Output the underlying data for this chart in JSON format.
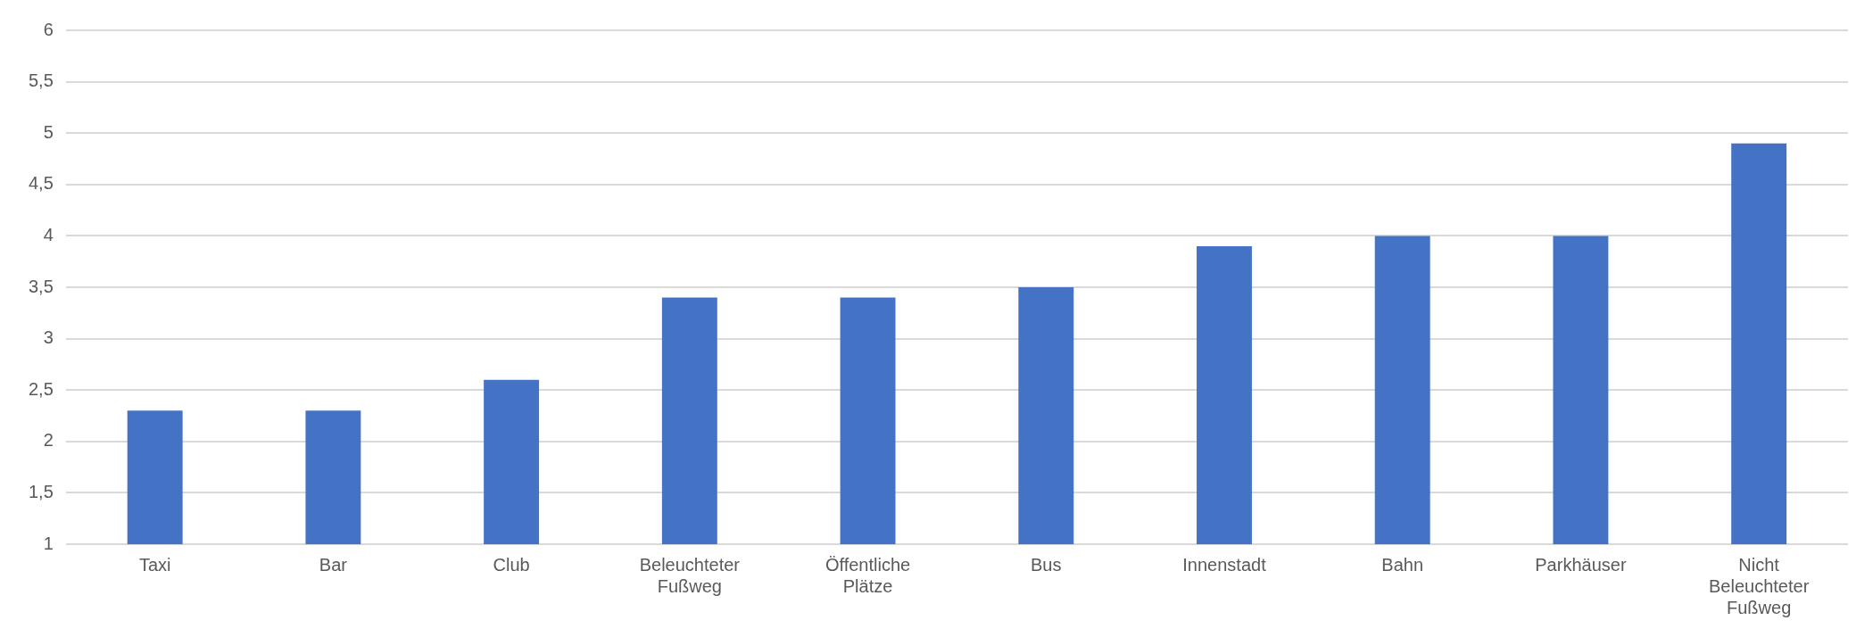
{
  "chart_data": {
    "type": "bar",
    "categories": [
      "Taxi",
      "Bar",
      "Club",
      "Beleuchteter Fußweg",
      "Öffentliche Plätze",
      "Bus",
      "Innenstadt",
      "Bahn",
      "Parkhäuser",
      "Nicht Beleuchteter Fußweg"
    ],
    "values": [
      2.3,
      2.3,
      2.6,
      3.4,
      3.4,
      3.5,
      3.9,
      4.0,
      4.0,
      4.9
    ],
    "color": "#4472c4",
    "ylim": [
      1,
      6
    ],
    "yticks": [
      1,
      {
        "value": 1.5,
        "label": "1,5"
      },
      2,
      {
        "value": 2.5,
        "label": "2,5"
      },
      3,
      {
        "value": 3.5,
        "label": "3,5"
      },
      4,
      {
        "value": 4.5,
        "label": "4,5"
      },
      5,
      {
        "value": 5.5,
        "label": "5,5"
      },
      6
    ],
    "grid": "y",
    "legend": false
  }
}
